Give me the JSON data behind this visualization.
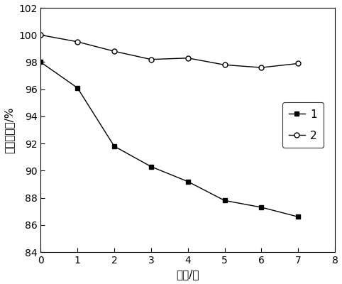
{
  "series1_x": [
    0,
    1,
    2,
    3,
    4,
    5,
    6,
    7
  ],
  "series1_y": [
    98.0,
    96.1,
    91.8,
    90.3,
    89.2,
    87.8,
    87.3,
    86.6
  ],
  "series2_x": [
    0,
    1,
    2,
    3,
    4,
    5,
    6,
    7
  ],
  "series2_y": [
    100.0,
    99.5,
    98.8,
    98.2,
    98.3,
    97.8,
    97.6,
    97.9
  ],
  "xlabel": "时间/天",
  "ylabel": "浆料悬浮率/%",
  "xlim": [
    0,
    8
  ],
  "ylim": [
    84,
    102
  ],
  "xticks": [
    0,
    1,
    2,
    3,
    4,
    5,
    6,
    7,
    8
  ],
  "yticks": [
    84,
    86,
    88,
    90,
    92,
    94,
    96,
    98,
    100,
    102
  ],
  "legend1": "1",
  "legend2": "2",
  "line_color": "#000000",
  "background_color": "#ffffff",
  "figsize": [
    4.82,
    4.0
  ],
  "dpi": 100
}
